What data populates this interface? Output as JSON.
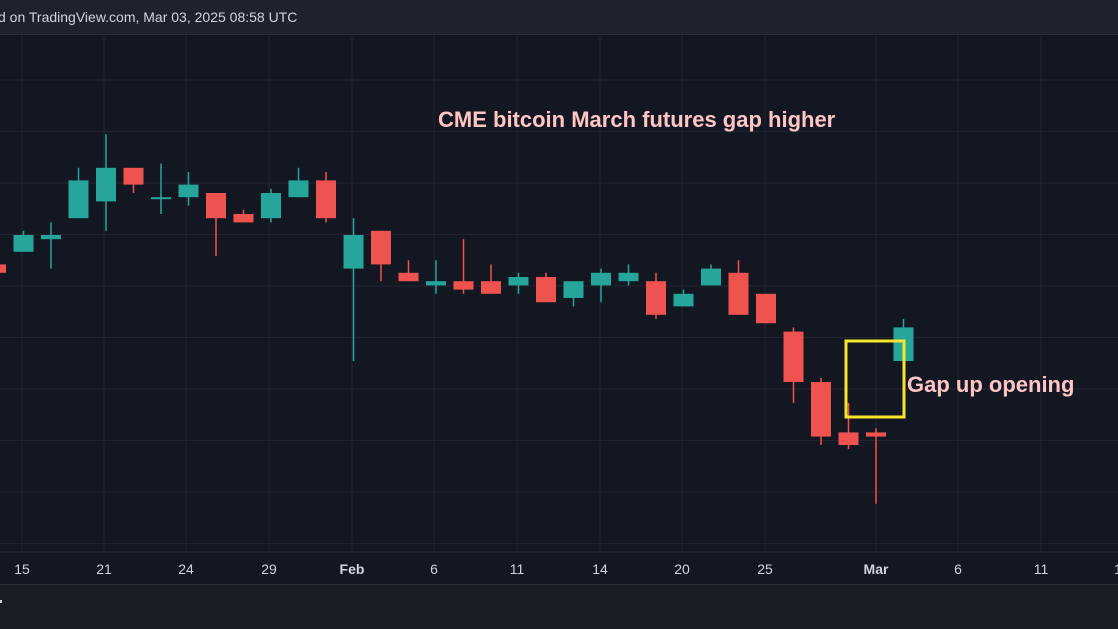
{
  "header": {
    "attribution": "d on TradingView.com, Mar 03, 2025 08:58 UTC"
  },
  "colors": {
    "background": "#131722",
    "grid": "#1f2430",
    "up": "#26a69a",
    "down": "#ef5350",
    "annotation_text": "#ffc5c5",
    "highlight_box": "#f5e52c"
  },
  "chart_data": {
    "type": "candlestick",
    "title": "",
    "xlabel": "",
    "ylabel": "",
    "ylim": [
      0,
      100
    ],
    "grid": true,
    "x_tick_labels": [
      "15",
      "21",
      "24",
      "29",
      "Feb",
      "6",
      "11",
      "14",
      "20",
      "25",
      "Mar",
      "6",
      "11",
      "1"
    ],
    "candles": [
      {
        "o": 58,
        "h": 59,
        "l": 55,
        "c": 56
      },
      {
        "o": 61,
        "h": 66,
        "l": 61,
        "c": 65
      },
      {
        "o": 64,
        "h": 68,
        "l": 57,
        "c": 65
      },
      {
        "o": 69,
        "h": 81,
        "l": 69,
        "c": 78
      },
      {
        "o": 73,
        "h": 89,
        "l": 66,
        "c": 81
      },
      {
        "o": 81,
        "h": 81,
        "l": 75,
        "c": 77
      },
      {
        "o": 74,
        "h": 82,
        "l": 70,
        "c": 74
      },
      {
        "o": 74,
        "h": 80,
        "l": 72,
        "c": 77
      },
      {
        "o": 75,
        "h": 75,
        "l": 60,
        "c": 69
      },
      {
        "o": 70,
        "h": 71,
        "l": 68,
        "c": 68
      },
      {
        "o": 69,
        "h": 76,
        "l": 68,
        "c": 75
      },
      {
        "o": 74,
        "h": 81,
        "l": 74,
        "c": 78
      },
      {
        "o": 78,
        "h": 80,
        "l": 68,
        "c": 69
      },
      {
        "o": 57,
        "h": 69,
        "l": 35,
        "c": 65
      },
      {
        "o": 66,
        "h": 66,
        "l": 54,
        "c": 58
      },
      {
        "o": 56,
        "h": 59,
        "l": 54,
        "c": 54
      },
      {
        "o": 53,
        "h": 59,
        "l": 51,
        "c": 54
      },
      {
        "o": 54,
        "h": 64,
        "l": 51,
        "c": 52
      },
      {
        "o": 54,
        "h": 58,
        "l": 52,
        "c": 51
      },
      {
        "o": 53,
        "h": 56,
        "l": 51,
        "c": 55
      },
      {
        "o": 55,
        "h": 56,
        "l": 49,
        "c": 49
      },
      {
        "o": 50,
        "h": 54,
        "l": 48,
        "c": 54
      },
      {
        "o": 53,
        "h": 57,
        "l": 49,
        "c": 56
      },
      {
        "o": 54,
        "h": 58,
        "l": 53,
        "c": 56
      },
      {
        "o": 54,
        "h": 56,
        "l": 45,
        "c": 46
      },
      {
        "o": 48,
        "h": 52,
        "l": 48,
        "c": 51
      },
      {
        "o": 53,
        "h": 58,
        "l": 53,
        "c": 57
      },
      {
        "o": 56,
        "h": 59,
        "l": 46,
        "c": 46
      },
      {
        "o": 51,
        "h": 51,
        "l": 44,
        "c": 44
      },
      {
        "o": 42,
        "h": 43,
        "l": 25,
        "c": 30
      },
      {
        "o": 30,
        "h": 31,
        "l": 15,
        "c": 17
      },
      {
        "o": 18,
        "h": 25,
        "l": 14,
        "c": 15
      },
      {
        "o": 18,
        "h": 19,
        "l": 1,
        "c": 17
      },
      {
        "o": 35,
        "h": 45,
        "l": 35,
        "c": 43
      }
    ],
    "annotations": [
      {
        "text": "CME bitcoin March futures gap higher"
      },
      {
        "text": "Gap up opening"
      }
    ]
  }
}
